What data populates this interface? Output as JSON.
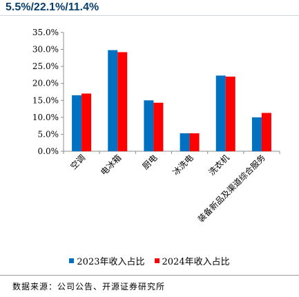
{
  "header": {
    "title": "5.5%/22.1%/11.4%"
  },
  "chart_data": {
    "type": "bar",
    "title": "",
    "xlabel": "",
    "ylabel": "",
    "categories": [
      "空调",
      "电冰箱",
      "厨电",
      "冰洗电",
      "洗衣机",
      "装备新品及渠道综合服务"
    ],
    "series": [
      {
        "name": "2023年收入占比",
        "color": "#0070c0",
        "values": [
          16.5,
          29.8,
          15.0,
          5.3,
          22.3,
          10.0
        ]
      },
      {
        "name": "2024年收入占比",
        "color": "#ff0000",
        "values": [
          17.0,
          29.2,
          14.3,
          5.3,
          22.0,
          11.3
        ]
      }
    ],
    "ylim": [
      0,
      35
    ],
    "yticks": [
      "0.0%",
      "5.0%",
      "10.0%",
      "15.0%",
      "20.0%",
      "25.0%",
      "30.0%",
      "35.0%"
    ],
    "legend_position": "bottom",
    "grid": false
  },
  "footer": {
    "source": "数据来源：公司公告、开源证券研究所"
  }
}
